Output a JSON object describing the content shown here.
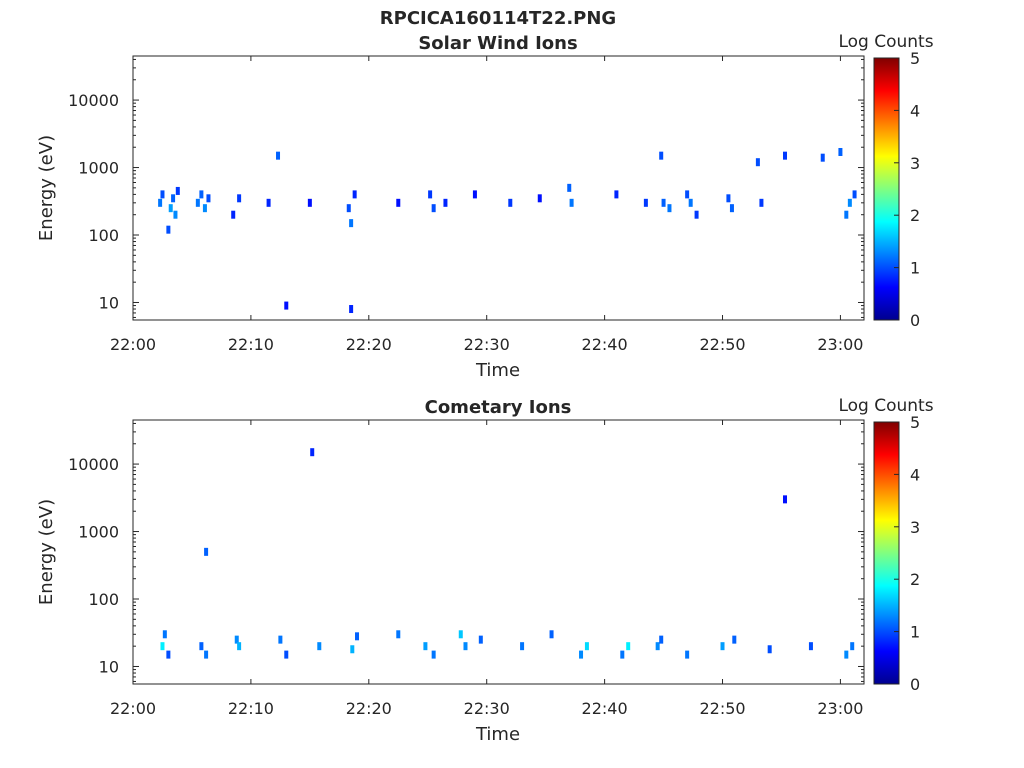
{
  "figure_title": "RPCICA160114T22.PNG",
  "colors": {
    "colormap": [
      "#00008f",
      "#0000ff",
      "#0080ff",
      "#00ffff",
      "#80ff80",
      "#ffff00",
      "#ff8000",
      "#ff0000",
      "#800000"
    ],
    "axes": "#262626"
  },
  "chart_data": [
    {
      "type": "heatmap",
      "title": "Solar Wind Ions",
      "xlabel": "Time",
      "ylabel": "Energy (eV)",
      "colorbar_label": "Log Counts",
      "x_ticks": [
        "22:00",
        "22:10",
        "22:20",
        "22:30",
        "22:40",
        "22:50",
        "23:00"
      ],
      "x_tick_minutes": [
        0,
        10,
        20,
        30,
        40,
        50,
        60
      ],
      "xlim_minutes": [
        0,
        62
      ],
      "y_ticks": [
        "10",
        "100",
        "1000",
        "10000"
      ],
      "y_tick_values": [
        10,
        100,
        1000,
        10000
      ],
      "ylim": [
        5.5,
        45000
      ],
      "y_scale": "log",
      "clim": [
        0,
        5
      ],
      "colorbar_ticks": [
        "0",
        "1",
        "2",
        "3",
        "4",
        "5"
      ],
      "cells": [
        [
          2.3,
          300,
          1.2
        ],
        [
          2.5,
          400,
          1.0
        ],
        [
          3.2,
          250,
          1.4
        ],
        [
          3.4,
          350,
          1.1
        ],
        [
          3.6,
          200,
          1.3
        ],
        [
          3.8,
          450,
          0.9
        ],
        [
          5.5,
          300,
          1.2
        ],
        [
          5.8,
          400,
          1.1
        ],
        [
          6.1,
          250,
          1.3
        ],
        [
          6.4,
          350,
          1.0
        ],
        [
          8.5,
          200,
          0.8
        ],
        [
          9.0,
          350,
          0.9
        ],
        [
          11.5,
          300,
          0.8
        ],
        [
          12.3,
          1500,
          1.1
        ],
        [
          15.0,
          300,
          0.7
        ],
        [
          18.3,
          250,
          1.0
        ],
        [
          18.5,
          150,
          1.2
        ],
        [
          18.8,
          400,
          0.8
        ],
        [
          22.5,
          300,
          0.7
        ],
        [
          25.2,
          400,
          0.9
        ],
        [
          25.5,
          250,
          1.0
        ],
        [
          26.5,
          300,
          0.8
        ],
        [
          29.0,
          400,
          0.7
        ],
        [
          32.0,
          300,
          0.9
        ],
        [
          34.5,
          350,
          0.7
        ],
        [
          37.0,
          500,
          1.1
        ],
        [
          37.2,
          300,
          1.2
        ],
        [
          41.0,
          400,
          0.8
        ],
        [
          43.5,
          300,
          0.9
        ],
        [
          44.8,
          1500,
          1.0
        ],
        [
          45.0,
          300,
          1.1
        ],
        [
          45.5,
          250,
          1.2
        ],
        [
          47.0,
          400,
          1.0
        ],
        [
          47.3,
          300,
          1.2
        ],
        [
          47.8,
          200,
          0.9
        ],
        [
          50.5,
          350,
          1.0
        ],
        [
          50.8,
          250,
          1.1
        ],
        [
          53.0,
          1200,
          1.0
        ],
        [
          53.3,
          300,
          0.9
        ],
        [
          55.3,
          1500,
          0.9
        ],
        [
          58.5,
          1400,
          1.0
        ],
        [
          60.0,
          1700,
          1.1
        ],
        [
          60.5,
          200,
          1.2
        ],
        [
          60.8,
          300,
          1.3
        ],
        [
          61.2,
          400,
          1.0
        ],
        [
          3.0,
          120,
          1.0
        ],
        [
          13.0,
          9,
          0.7
        ],
        [
          18.5,
          8,
          0.8
        ]
      ]
    },
    {
      "type": "heatmap",
      "title": "Cometary Ions",
      "xlabel": "Time",
      "ylabel": "Energy (eV)",
      "colorbar_label": "Log Counts",
      "x_ticks": [
        "22:00",
        "22:10",
        "22:20",
        "22:30",
        "22:40",
        "22:50",
        "23:00"
      ],
      "x_tick_minutes": [
        0,
        10,
        20,
        30,
        40,
        50,
        60
      ],
      "xlim_minutes": [
        0,
        62
      ],
      "y_ticks": [
        "10",
        "100",
        "1000",
        "10000"
      ],
      "y_tick_values": [
        10,
        100,
        1000,
        10000
      ],
      "ylim": [
        5.5,
        45000
      ],
      "y_scale": "log",
      "clim": [
        0,
        5
      ],
      "colorbar_ticks": [
        "0",
        "1",
        "2",
        "3",
        "4",
        "5"
      ],
      "cells": [
        [
          2.5,
          20,
          1.8
        ],
        [
          2.7,
          30,
          1.2
        ],
        [
          3.0,
          15,
          1.0
        ],
        [
          5.8,
          20,
          1.1
        ],
        [
          6.2,
          15,
          1.2
        ],
        [
          8.8,
          25,
          1.3
        ],
        [
          9.0,
          20,
          1.5
        ],
        [
          12.5,
          25,
          1.2
        ],
        [
          13.0,
          15,
          1.0
        ],
        [
          15.8,
          20,
          1.3
        ],
        [
          18.6,
          18,
          1.5
        ],
        [
          19.0,
          28,
          1.1
        ],
        [
          22.5,
          30,
          1.2
        ],
        [
          24.8,
          20,
          1.4
        ],
        [
          25.5,
          15,
          1.2
        ],
        [
          27.8,
          30,
          1.6
        ],
        [
          28.2,
          20,
          1.3
        ],
        [
          29.5,
          25,
          1.1
        ],
        [
          33.0,
          20,
          1.2
        ],
        [
          35.5,
          30,
          1.1
        ],
        [
          38.0,
          15,
          1.3
        ],
        [
          38.5,
          20,
          1.7
        ],
        [
          41.5,
          15,
          1.2
        ],
        [
          42.0,
          20,
          1.8
        ],
        [
          44.5,
          20,
          1.3
        ],
        [
          44.8,
          25,
          1.1
        ],
        [
          47.0,
          15,
          1.2
        ],
        [
          50.0,
          20,
          1.4
        ],
        [
          51.0,
          25,
          1.1
        ],
        [
          54.0,
          18,
          1.0
        ],
        [
          57.5,
          20,
          1.0
        ],
        [
          60.5,
          15,
          1.3
        ],
        [
          61.0,
          20,
          1.2
        ],
        [
          6.2,
          500,
          1.1
        ],
        [
          15.2,
          15000,
          0.8
        ],
        [
          55.3,
          3000,
          0.7
        ]
      ]
    }
  ]
}
